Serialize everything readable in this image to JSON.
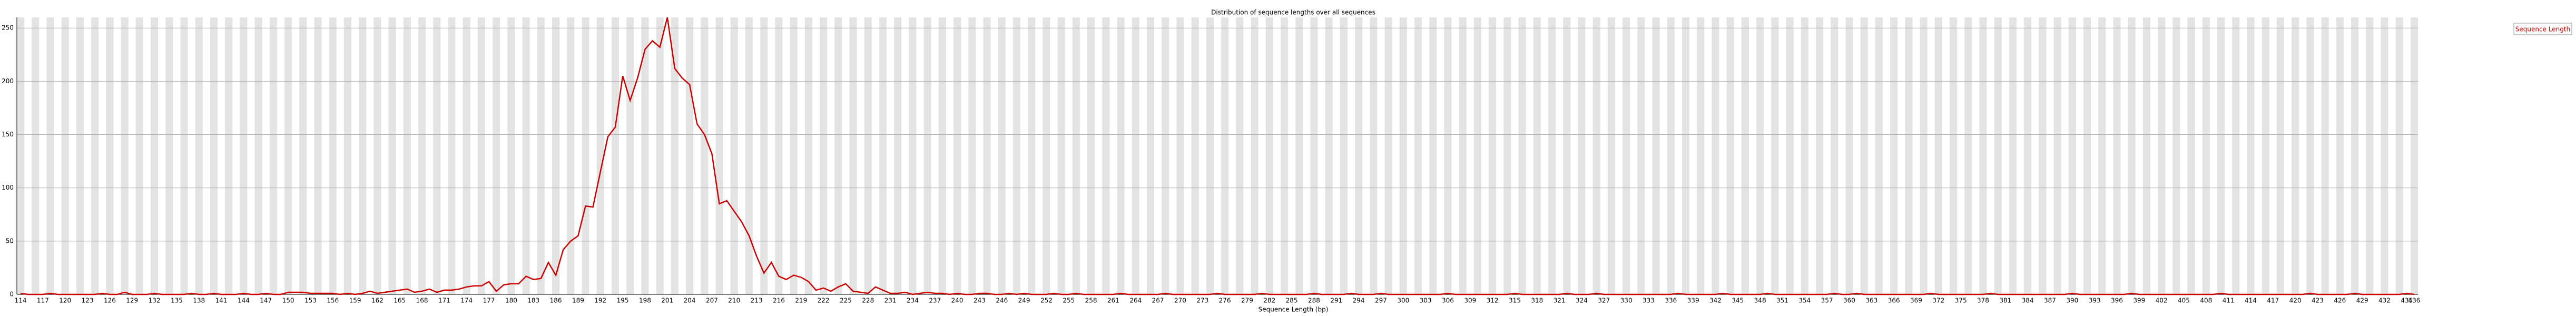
{
  "chart_data": {
    "type": "line",
    "title": "Distribution of sequence lengths over all sequences",
    "x_label": "Sequence Length (bp)",
    "categories": [
      "114",
      null,
      null,
      "117",
      null,
      null,
      "120",
      null,
      null,
      "123",
      null,
      null,
      "126",
      null,
      null,
      "129",
      null,
      null,
      "132",
      null,
      null,
      "135",
      null,
      null,
      "138",
      null,
      null,
      "141",
      null,
      null,
      "144",
      null,
      null,
      "147",
      null,
      null,
      "150",
      null,
      null,
      "153",
      null,
      null,
      "156",
      null,
      null,
      "159",
      null,
      null,
      "162",
      null,
      null,
      "165",
      null,
      null,
      "168",
      null,
      null,
      "171",
      null,
      null,
      "174",
      null,
      null,
      "177",
      null,
      null,
      "180",
      null,
      null,
      "183",
      null,
      null,
      "186",
      null,
      null,
      "189",
      null,
      null,
      "192",
      null,
      null,
      "195",
      null,
      null,
      "198",
      null,
      null,
      "201",
      null,
      null,
      "204",
      null,
      null,
      "207",
      null,
      null,
      "210",
      null,
      null,
      "213",
      null,
      null,
      "216",
      null,
      null,
      "219",
      null,
      null,
      "222",
      null,
      null,
      "225",
      null,
      null,
      "228",
      null,
      null,
      "231",
      null,
      null,
      "234",
      null,
      null,
      "237",
      null,
      null,
      "240",
      null,
      null,
      "243",
      null,
      null,
      "246",
      null,
      null,
      "249",
      null,
      null,
      "252",
      null,
      null,
      "255",
      null,
      null,
      "258",
      null,
      null,
      "261",
      null,
      null,
      "264",
      null,
      null,
      "267",
      null,
      null,
      "270",
      null,
      null,
      "273",
      null,
      null,
      "276",
      null,
      null,
      "279",
      null,
      null,
      "282",
      null,
      null,
      "285",
      null,
      null,
      "288",
      null,
      null,
      "291",
      null,
      null,
      "294",
      null,
      null,
      "297",
      null,
      null,
      "300",
      null,
      null,
      "303",
      null,
      null,
      "306",
      null,
      null,
      "309",
      null,
      null,
      "312",
      null,
      null,
      "315",
      null,
      null,
      "318",
      null,
      null,
      "321",
      null,
      null,
      "324",
      null,
      null,
      "327",
      null,
      null,
      "330",
      null,
      null,
      "333",
      null,
      null,
      "336",
      null,
      null,
      "339",
      null,
      null,
      "342",
      null,
      null,
      "345",
      null,
      null,
      "348",
      null,
      null,
      "351",
      null,
      null,
      "354",
      null,
      null,
      "357",
      null,
      null,
      "360",
      null,
      null,
      "363",
      null,
      null,
      "366",
      null,
      null,
      "369",
      null,
      null,
      "372",
      null,
      null,
      "375",
      null,
      null,
      "378",
      null,
      null,
      "381",
      null,
      null,
      "384",
      null,
      null,
      "387",
      null,
      null,
      "390",
      null,
      null,
      "393",
      null,
      null,
      "396",
      null,
      null,
      "399",
      null,
      null,
      "402",
      null,
      null,
      "405",
      null,
      null,
      "408",
      null,
      null,
      "411",
      null,
      null,
      "414",
      null,
      null,
      "417",
      null,
      null,
      "420",
      null,
      null,
      "423",
      null,
      null,
      "426",
      null,
      null,
      "429",
      null,
      null,
      "432",
      null,
      null,
      "435",
      "436"
    ],
    "series": [
      {
        "name": "Sequence Length",
        "color": "#cc0000",
        "values": [
          1,
          0,
          0,
          0,
          1,
          0,
          0,
          0,
          0,
          0,
          0,
          1,
          0,
          0,
          2,
          0,
          0,
          0,
          1,
          0,
          0,
          0,
          0,
          1,
          0,
          0,
          1,
          0,
          0,
          0,
          1,
          0,
          0,
          1,
          0,
          0,
          2,
          2,
          2,
          1,
          1,
          1,
          1,
          0,
          1,
          0,
          1,
          3,
          1,
          2,
          3,
          4,
          5,
          2,
          3,
          5,
          2,
          4,
          4,
          5,
          7,
          8,
          8,
          12,
          3,
          9,
          10,
          10,
          17,
          14,
          15,
          30,
          18,
          42,
          50,
          55,
          83,
          82,
          115,
          148,
          157,
          205,
          182,
          203,
          230,
          238,
          232,
          260,
          212,
          203,
          197,
          160,
          150,
          132,
          85,
          88,
          78,
          68,
          55,
          36,
          20,
          30,
          17,
          14,
          18,
          16,
          12,
          4,
          6,
          3,
          7,
          10,
          3,
          2,
          1,
          7,
          4,
          1,
          1,
          2,
          0,
          1,
          2,
          1,
          1,
          0,
          1,
          0,
          0,
          1,
          1,
          0,
          0,
          1,
          0,
          1,
          0,
          0,
          0,
          1,
          0,
          0,
          1,
          0,
          0,
          0,
          0,
          0,
          1,
          0,
          0,
          0,
          0,
          0,
          1,
          0,
          0,
          0,
          0,
          0,
          0,
          1,
          0,
          0,
          0,
          0,
          0,
          1,
          0,
          0,
          0,
          0,
          0,
          0,
          1,
          0,
          0,
          0,
          0,
          1,
          0,
          0,
          0,
          1,
          0,
          0,
          0,
          0,
          0,
          0,
          0,
          0,
          1,
          0,
          0,
          0,
          0,
          0,
          0,
          0,
          0,
          1,
          0,
          0,
          0,
          0,
          0,
          0,
          1,
          0,
          0,
          0,
          1,
          0,
          0,
          0,
          0,
          0,
          0,
          0,
          0,
          0,
          0,
          1,
          0,
          0,
          0,
          0,
          0,
          1,
          0,
          0,
          0,
          0,
          0,
          1,
          0,
          0,
          0,
          0,
          0,
          0,
          0,
          0,
          1,
          0,
          0,
          1,
          0,
          0,
          0,
          0,
          0,
          0,
          0,
          0,
          0,
          1,
          0,
          0,
          0,
          0,
          0,
          0,
          0,
          1,
          0,
          0,
          0,
          0,
          0,
          0,
          0,
          0,
          0,
          0,
          1,
          0,
          0,
          0,
          0,
          0,
          0,
          0,
          1,
          0,
          0,
          0,
          0,
          0,
          0,
          0,
          0,
          0,
          0,
          0,
          1,
          0,
          0,
          0,
          0,
          0,
          0,
          0,
          0,
          0,
          0,
          0,
          1,
          0,
          0,
          0,
          0,
          0,
          1,
          0,
          0,
          0,
          0,
          0,
          0,
          1,
          0
        ]
      }
    ],
    "ylim": [
      0,
      260
    ],
    "yticks": [
      0,
      50,
      100,
      150,
      200,
      250
    ],
    "grid": true,
    "legend": "upper right"
  }
}
